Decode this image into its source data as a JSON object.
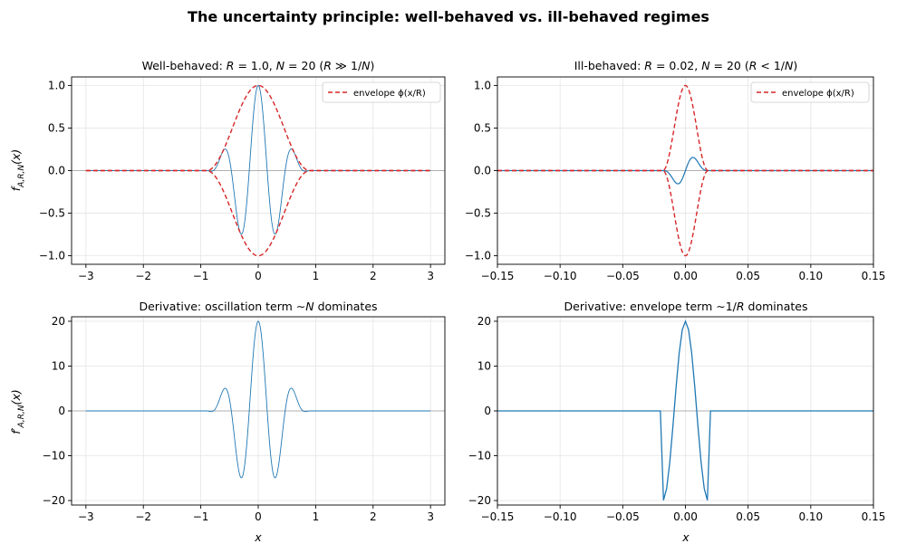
{
  "figure": {
    "suptitle": "The uncertainty principle: well-behaved vs. ill-behaved regimes"
  },
  "chart_data": [
    {
      "type": "line",
      "title": "Well-behaved: R = 1.0, N = 20  (R ≫ 1/N)",
      "xlabel": "",
      "ylabel": "f_{A,R,N}(x)",
      "xlim": [
        -3.25,
        3.25
      ],
      "ylim": [
        -1.1,
        1.1
      ],
      "xticks": [
        -3,
        -2,
        -1,
        0,
        1,
        2,
        3
      ],
      "yticks": [
        -1.0,
        -0.5,
        0.0,
        0.5,
        1.0
      ],
      "xtick_labels": [
        "−3",
        "−2",
        "−1",
        "0",
        "1",
        "2",
        "3"
      ],
      "ytick_labels": [
        "−1.0",
        "−0.5",
        "0.0",
        "0.5",
        "1.0"
      ],
      "grid": true,
      "legend": {
        "position": "top-right",
        "entries": [
          "envelope ϕ(x/R)"
        ]
      },
      "series": [
        {
          "name": "",
          "color": "#1f77b4",
          "style": "solid",
          "function": "f",
          "R": 1.0,
          "N": 20,
          "x_range": [
            -3,
            3
          ],
          "points": 6001
        },
        {
          "name": "envelope ϕ(x/R)",
          "color": "#d62728",
          "style": "dashed",
          "function": "envelope_pm",
          "R": 1.0,
          "x_range": [
            -3,
            3
          ],
          "points": 1201
        }
      ]
    },
    {
      "type": "line",
      "title": "Ill-behaved: R = 0.02, N = 20  (R < 1/N)",
      "xlabel": "",
      "ylabel": "",
      "xlim": [
        -0.15,
        0.15
      ],
      "ylim": [
        -1.1,
        1.1
      ],
      "xticks": [
        -0.15,
        -0.1,
        -0.05,
        0.0,
        0.05,
        0.1,
        0.15
      ],
      "yticks": [
        -1.0,
        -0.5,
        0.0,
        0.5,
        1.0
      ],
      "xtick_labels": [
        "−0.15",
        "−0.10",
        "−0.05",
        "0.00",
        "0.05",
        "0.10",
        "0.15"
      ],
      "ytick_labels": [
        "−1.0",
        "−0.5",
        "0.0",
        "0.5",
        "1.0"
      ],
      "grid": true,
      "legend": {
        "position": "top-right",
        "entries": [
          "envelope ϕ(x/R)"
        ]
      },
      "series": [
        {
          "name": "",
          "color": "#1f77b4",
          "style": "solid",
          "function": "f",
          "R": 0.02,
          "N": 20,
          "x_range": [
            -0.15,
            0.15
          ],
          "points": 301
        },
        {
          "name": "envelope ϕ(x/R)",
          "color": "#d62728",
          "style": "dashed",
          "function": "envelope_pm",
          "R": 0.02,
          "x_range": [
            -0.15,
            0.15
          ],
          "points": 601
        }
      ]
    },
    {
      "type": "line",
      "title": "Derivative: oscillation term ∼N dominates",
      "xlabel": "x",
      "ylabel": "f′_{A,R,N}(x)",
      "xlim": [
        -3.25,
        3.25
      ],
      "ylim": [
        -21,
        21
      ],
      "xticks": [
        -3,
        -2,
        -1,
        0,
        1,
        2,
        3
      ],
      "yticks": [
        -20,
        -10,
        0,
        10,
        20
      ],
      "xtick_labels": [
        "−3",
        "−2",
        "−1",
        "0",
        "1",
        "2",
        "3"
      ],
      "ytick_labels": [
        "−20",
        "−10",
        "0",
        "10",
        "20"
      ],
      "grid": true,
      "series": [
        {
          "name": "",
          "color": "#1f77b4",
          "style": "solid",
          "function": "df",
          "R": 1.0,
          "N": 20,
          "x_range": [
            -3,
            3
          ],
          "points": 6001
        }
      ]
    },
    {
      "type": "line",
      "title": "Derivative: envelope term ∼1/R dominates",
      "xlabel": "x",
      "ylabel": "",
      "xlim": [
        -0.15,
        0.15
      ],
      "ylim": [
        -21,
        21
      ],
      "xticks": [
        -0.15,
        -0.1,
        -0.05,
        0.0,
        0.05,
        0.1,
        0.15
      ],
      "yticks": [
        -20,
        -10,
        0,
        10,
        20
      ],
      "xtick_labels": [
        "−0.15",
        "−0.10",
        "−0.05",
        "0.00",
        "0.05",
        "0.10",
        "0.15"
      ],
      "ytick_labels": [
        "−20",
        "−10",
        "0",
        "10",
        "20"
      ],
      "grid": true,
      "series": [
        {
          "name": "",
          "color": "#1f77b4",
          "style": "solid",
          "function": "df_mag",
          "R": 0.02,
          "N": 20,
          "x_range": [
            -0.15,
            0.15
          ],
          "points": 121
        }
      ]
    }
  ]
}
